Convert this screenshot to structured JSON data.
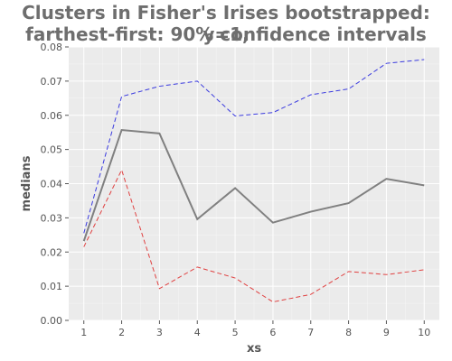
{
  "chart_data": {
    "type": "line",
    "title_line1": "Clusters in Fisher's Irises bootstrapped: y=1,",
    "title_line2": "farthest-first: 90% confidence intervals",
    "xlabel": "xs",
    "ylabel": "medians",
    "x": [
      1,
      2,
      3,
      4,
      5,
      6,
      7,
      8,
      9,
      10
    ],
    "xlim": [
      0.6,
      10.4
    ],
    "ylim": [
      0.0,
      0.08
    ],
    "yticks": [
      0.0,
      0.01,
      0.02,
      0.03,
      0.04,
      0.05,
      0.06,
      0.07,
      0.08
    ],
    "ytick_labels": [
      "0.00",
      "0.01",
      "0.02",
      "0.03",
      "0.04",
      "0.05",
      "0.06",
      "0.07",
      "0.08"
    ],
    "xtick_labels": [
      "1",
      "2",
      "3",
      "4",
      "5",
      "6",
      "7",
      "8",
      "9",
      "10"
    ],
    "grid": true,
    "series": [
      {
        "role": "upper",
        "values": [
          0.0255,
          0.0655,
          0.0685,
          0.07,
          0.0598,
          0.0608,
          0.066,
          0.0677,
          0.0752,
          0.0763
        ],
        "color": "#3a3adf",
        "style": "dashed"
      },
      {
        "role": "median",
        "values": [
          0.0232,
          0.0557,
          0.0547,
          0.0296,
          0.0387,
          0.0286,
          0.0318,
          0.0343,
          0.0414,
          0.0395
        ],
        "color": "#808080",
        "style": "solid"
      },
      {
        "role": "lower",
        "values": [
          0.0215,
          0.044,
          0.0093,
          0.0156,
          0.0124,
          0.0054,
          0.0076,
          0.0143,
          0.0134,
          0.0148
        ],
        "color": "#e04040",
        "style": "dashed"
      }
    ]
  }
}
